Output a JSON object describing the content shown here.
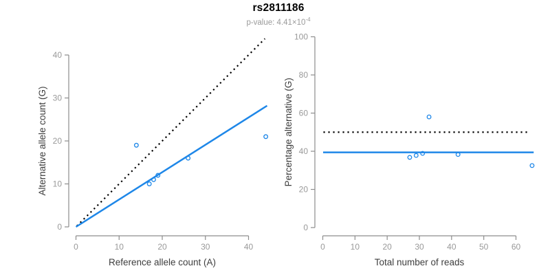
{
  "header": {
    "title": "rs2811186",
    "pvalue_label": "p-value: 4.41×10",
    "pvalue_exponent": "-4"
  },
  "colors": {
    "accent_blue": "#1E87E8",
    "dotted_line": "#000000",
    "axis_line": "#8C8C8C",
    "tick_label": "#999999",
    "axis_title": "#3D3D3D",
    "subtitle_gray": "#999999"
  },
  "chart_data": [
    {
      "type": "scatter",
      "name": "allele-counts",
      "xlabel": "Reference allele count (A)",
      "ylabel": "Alternative allele count (G)",
      "xlim": [
        0,
        44.5
      ],
      "ylim": [
        0,
        44
      ],
      "xticks": [
        0,
        10,
        20,
        30,
        40
      ],
      "yticks": [
        0,
        10,
        20,
        30,
        40
      ],
      "points": [
        [
          14,
          19
        ],
        [
          17,
          10
        ],
        [
          18,
          11
        ],
        [
          19,
          12
        ],
        [
          26,
          16
        ],
        [
          44,
          21
        ]
      ],
      "lines": [
        {
          "name": "identity-line",
          "style": "dotted",
          "color_key": "dotted_line",
          "x1": 0.2,
          "y1": 0.2,
          "x2": 43.8,
          "y2": 43.8
        },
        {
          "name": "fit-line",
          "style": "solid",
          "color_key": "accent_blue",
          "x1": 0,
          "y1": 0,
          "x2": 44.3,
          "y2": 28.2
        }
      ],
      "legend_position": "none",
      "grid": false
    },
    {
      "type": "scatter",
      "name": "percentage-vs-reads",
      "xlabel": "Total number of reads",
      "ylabel": "Percentage alternative (G)",
      "xlim": [
        0,
        66
      ],
      "ylim": [
        0,
        100
      ],
      "xticks": [
        0,
        10,
        20,
        30,
        40,
        50,
        60
      ],
      "yticks": [
        0,
        20,
        40,
        60,
        80,
        100
      ],
      "points": [
        [
          27,
          36.8
        ],
        [
          29,
          37.8
        ],
        [
          31,
          38.9
        ],
        [
          33,
          58
        ],
        [
          42,
          38.3
        ],
        [
          65,
          32.5
        ]
      ],
      "lines": [
        {
          "name": "expected-50pct-line",
          "style": "dotted",
          "color_key": "dotted_line",
          "x1": 0.2,
          "y1": 50,
          "x2": 64.3,
          "y2": 50
        },
        {
          "name": "mean-percentage-line",
          "style": "solid",
          "color_key": "accent_blue",
          "x1": 0.1,
          "y1": 39.4,
          "x2": 65.5,
          "y2": 39.4
        }
      ],
      "legend_position": "none",
      "grid": false
    }
  ]
}
